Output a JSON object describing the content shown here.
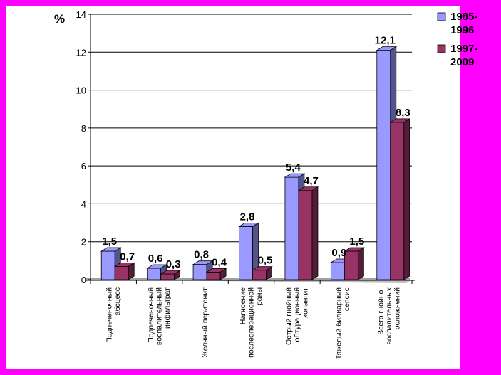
{
  "chart_data": {
    "type": "bar",
    "unit_label": "%",
    "ylim": [
      0,
      14
    ],
    "yticks": [
      0,
      2,
      4,
      6,
      8,
      10,
      12,
      14
    ],
    "grid": true,
    "legend_position": "top-right",
    "categories": [
      [
        "Подпеченочный",
        "абсцесс"
      ],
      [
        "Подпеченочный",
        "воспалительный",
        "инфильтрат"
      ],
      [
        "Желчный перитонит"
      ],
      [
        "Нагноение",
        "послеоперационной",
        "раны"
      ],
      [
        "Острый гнойный",
        "обтурационный",
        "холангит"
      ],
      [
        "Тяжелый билиарный",
        "сепсис"
      ],
      [
        "Всего гнойно-",
        "воспалительных",
        "осложнений"
      ]
    ],
    "series": [
      {
        "name": "1985-1996",
        "legend_lines": [
          "1985-",
          "1996"
        ],
        "color": "#9999ff",
        "values": [
          1.5,
          0.6,
          0.8,
          2.8,
          5.4,
          0.9,
          12.1
        ],
        "labels": [
          "1,5",
          "0,6",
          "0,8",
          "2,8",
          "5,4",
          "0,9",
          "12,1"
        ]
      },
      {
        "name": "1997-2009",
        "legend_lines": [
          "1997-",
          "2009"
        ],
        "color": "#993366",
        "values": [
          0.7,
          0.3,
          0.4,
          0.5,
          4.7,
          1.5,
          8.3
        ],
        "labels": [
          "0,7",
          "0,3",
          "0,4",
          "0,5",
          "4,7",
          "1,5",
          "8,3"
        ]
      }
    ]
  }
}
